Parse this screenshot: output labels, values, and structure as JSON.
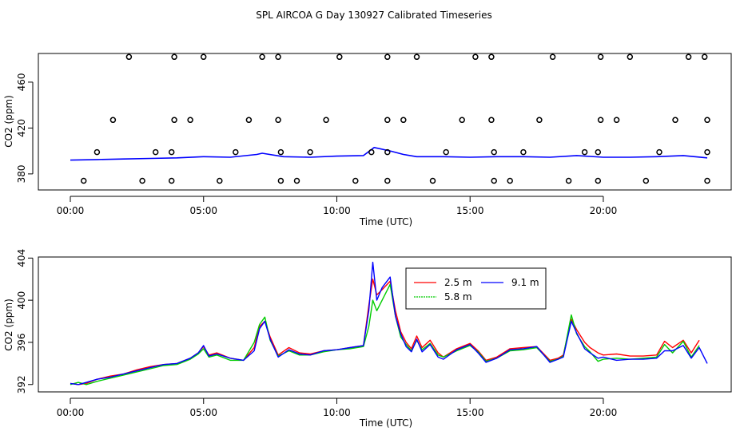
{
  "figure_title": "SPL AIRCOA G  Day 130927  Calibrated Timeseries",
  "colors": {
    "red": "#ff0000",
    "green": "#00cc00",
    "blue": "#0000ff",
    "points": "#000000"
  },
  "chart_data": [
    {
      "type": "scatter",
      "xlabel": "Time (UTC)",
      "ylabel": "CO2 (ppm)",
      "xlim": [
        -1.2,
        24.8
      ],
      "ylim": [
        366,
        485
      ],
      "x_ticks": [
        0,
        5,
        10,
        15,
        20
      ],
      "x_tick_labels": [
        "00:00",
        "05:00",
        "10:00",
        "15:00",
        "20:00"
      ],
      "y_ticks": [
        380,
        420,
        460
      ],
      "y_tick_labels": [
        "380",
        "420",
        "460"
      ],
      "grid": false,
      "point_series": {
        "name": "",
        "marker": "open-circle",
        "x": [
          0.5,
          2.7,
          3.8,
          5.6,
          7.9,
          8.5,
          10.7,
          11.9,
          13.6,
          15.9,
          16.5,
          18.7,
          19.8,
          21.6,
          23.9,
          1.0,
          3.2,
          3.8,
          6.2,
          7.9,
          9.0,
          11.3,
          11.9,
          14.1,
          15.9,
          17.0,
          19.3,
          19.8,
          22.1,
          23.9,
          1.6,
          3.9,
          4.5,
          6.7,
          7.8,
          9.6,
          11.9,
          12.5,
          14.7,
          15.8,
          17.6,
          19.9,
          20.5,
          22.7,
          23.9,
          2.2,
          3.9,
          5.0,
          7.2,
          7.8,
          10.1,
          11.9,
          13.0,
          15.2,
          15.8,
          18.1,
          19.9,
          21.0,
          23.2,
          23.8
        ],
        "y": [
          374,
          374,
          374,
          374,
          374,
          374,
          374,
          374,
          374,
          374,
          374,
          374,
          374,
          374,
          374,
          399,
          399,
          399,
          399,
          399,
          399,
          399,
          399,
          399,
          399,
          399,
          399,
          399,
          399,
          399,
          427,
          427,
          427,
          427,
          427,
          427,
          427,
          427,
          427,
          427,
          427,
          427,
          427,
          427,
          427,
          482,
          482,
          482,
          482,
          482,
          482,
          482,
          482,
          482,
          482,
          482,
          482,
          482,
          482,
          482
        ]
      },
      "line_series": [
        {
          "name": "",
          "x": [
            0,
            1,
            2,
            3,
            4,
            5,
            6,
            7,
            7.2,
            8,
            9,
            10,
            11,
            11.4,
            12,
            12.5,
            13,
            14,
            15,
            16,
            17,
            18,
            19,
            20,
            21,
            22,
            23,
            23.9
          ],
          "y": [
            392,
            392.5,
            393,
            393.5,
            394,
            395,
            394.5,
            397,
            398,
            395,
            394.5,
            395.5,
            396,
            403,
            400,
            397,
            395,
            395,
            394.5,
            395,
            395,
            394.5,
            396,
            394.5,
            394.5,
            395,
            396,
            394
          ]
        }
      ]
    },
    {
      "type": "line",
      "xlabel": "Time (UTC)",
      "ylabel": "CO2 (ppm)",
      "xlim": [
        -1.2,
        24.8
      ],
      "ylim": [
        391.3,
        404.1
      ],
      "x_ticks": [
        0,
        5,
        10,
        15,
        20
      ],
      "x_tick_labels": [
        "00:00",
        "05:00",
        "10:00",
        "15:00",
        "20:00"
      ],
      "y_ticks": [
        392,
        396,
        400,
        404
      ],
      "y_tick_labels": [
        "392",
        "396",
        "400",
        "404"
      ],
      "grid": false,
      "legend": {
        "placement": "top-center",
        "entries": [
          "2.5 m",
          "5.8 m",
          "9.1 m"
        ]
      },
      "series": [
        {
          "name": "2.5 m",
          "color": "#ff0000",
          "x": [
            0,
            0.3,
            0.6,
            1,
            1.5,
            2,
            2.5,
            3,
            3.5,
            4,
            4.5,
            4.8,
            5,
            5.2,
            5.5,
            6,
            6.5,
            6.9,
            7.1,
            7.3,
            7.5,
            7.8,
            8.2,
            8.6,
            9,
            9.5,
            10,
            10.5,
            11,
            11.2,
            11.35,
            11.5,
            11.7,
            12,
            12.2,
            12.4,
            12.6,
            12.8,
            13,
            13.2,
            13.5,
            13.8,
            14,
            14.5,
            15,
            15.3,
            15.6,
            16,
            16.5,
            17,
            17.5,
            18,
            18.3,
            18.5,
            18.8,
            19,
            19.3,
            19.5,
            19.8,
            20,
            20.5,
            21,
            21.5,
            22,
            22.3,
            22.6,
            23,
            23.3,
            23.6
          ],
          "y": [
            392.1,
            392,
            392.1,
            392.5,
            392.8,
            393,
            393.4,
            393.7,
            393.9,
            394,
            394.5,
            395,
            395.6,
            394.8,
            395,
            394.5,
            394.3,
            395.5,
            397.5,
            398,
            396.5,
            394.8,
            395.5,
            395,
            394.9,
            395.2,
            395.3,
            395.5,
            395.7,
            399.5,
            402,
            400.5,
            401,
            401.8,
            399,
            397,
            396,
            395.4,
            396.6,
            395.5,
            396.2,
            395,
            394.6,
            395.4,
            395.9,
            395.2,
            394.3,
            394.6,
            395.4,
            395.5,
            395.6,
            394.3,
            394.5,
            394.8,
            398.2,
            397.2,
            396,
            395.5,
            395,
            394.8,
            394.9,
            394.7,
            394.7,
            394.8,
            396.1,
            395.5,
            396.2,
            395,
            396.2
          ]
        },
        {
          "name": "5.8 m",
          "color": "#00cc00",
          "x": [
            0,
            0.3,
            0.6,
            1,
            1.5,
            2,
            2.5,
            3,
            3.5,
            4,
            4.5,
            4.8,
            5,
            5.2,
            5.5,
            6,
            6.5,
            6.9,
            7.1,
            7.3,
            7.5,
            7.8,
            8.2,
            8.6,
            9,
            9.5,
            10,
            10.5,
            11,
            11.2,
            11.35,
            11.5,
            11.7,
            12,
            12.2,
            12.4,
            12.6,
            12.8,
            13,
            13.2,
            13.5,
            13.8,
            14,
            14.5,
            15,
            15.3,
            15.6,
            16,
            16.5,
            17,
            17.5,
            18,
            18.3,
            18.5,
            18.8,
            19,
            19.3,
            19.5,
            19.8,
            20,
            20.5,
            21,
            21.5,
            22,
            22.3,
            22.6,
            23,
            23.3,
            23.6
          ],
          "y": [
            392.0,
            392.2,
            392,
            392.3,
            392.6,
            392.9,
            393.2,
            393.5,
            393.8,
            393.9,
            394.4,
            394.9,
            395.4,
            394.6,
            394.8,
            394.3,
            394.3,
            396,
            397.7,
            398.4,
            396.2,
            394.7,
            395.2,
            394.8,
            394.8,
            395.1,
            395.3,
            395.4,
            395.6,
            397.5,
            400,
            399,
            400,
            401.5,
            398.5,
            396.5,
            395.8,
            395.2,
            396.2,
            395.3,
            395.9,
            394.8,
            394.6,
            395.2,
            395.7,
            395.1,
            394.2,
            394.5,
            395.2,
            395.3,
            395.5,
            394.2,
            394.4,
            394.7,
            398.6,
            396.8,
            395.6,
            395.1,
            394.2,
            394.4,
            394.5,
            394.4,
            394.5,
            394.6,
            395.8,
            395,
            396.1,
            394.6,
            395.7
          ]
        },
        {
          "name": "9.1 m",
          "color": "#0000ff",
          "x": [
            0,
            0.3,
            0.6,
            1,
            1.5,
            2,
            2.5,
            3,
            3.5,
            4,
            4.5,
            4.8,
            5,
            5.2,
            5.5,
            6,
            6.5,
            6.9,
            7.1,
            7.3,
            7.5,
            7.8,
            8.2,
            8.6,
            9,
            9.5,
            10,
            10.5,
            11,
            11.2,
            11.35,
            11.5,
            11.7,
            12,
            12.2,
            12.4,
            12.6,
            12.8,
            13,
            13.2,
            13.5,
            13.8,
            14,
            14.5,
            15,
            15.3,
            15.6,
            16,
            16.5,
            17,
            17.5,
            18,
            18.3,
            18.5,
            18.8,
            19,
            19.3,
            19.5,
            19.8,
            20,
            20.5,
            21,
            21.5,
            22,
            22.3,
            22.6,
            23,
            23.3,
            23.6,
            23.9
          ],
          "y": [
            392.1,
            392,
            392.2,
            392.5,
            392.7,
            393,
            393.3,
            393.6,
            393.9,
            394,
            394.5,
            395,
            395.7,
            394.7,
            394.9,
            394.5,
            394.3,
            395.2,
            397.3,
            398,
            396.3,
            394.6,
            395.3,
            394.9,
            394.8,
            395.2,
            395.3,
            395.5,
            395.7,
            399,
            403.6,
            400,
            401.2,
            402.2,
            398.5,
            396.8,
            395.6,
            395.1,
            396.3,
            395.1,
            395.8,
            394.6,
            394.4,
            395.3,
            395.8,
            395,
            394.1,
            394.5,
            395.3,
            395.4,
            395.6,
            394.1,
            394.4,
            394.6,
            398,
            396.9,
            395.4,
            395,
            394.5,
            394.6,
            394.3,
            394.4,
            394.4,
            394.5,
            395.2,
            395.2,
            395.7,
            394.5,
            395.5,
            394
          ]
        }
      ]
    }
  ]
}
